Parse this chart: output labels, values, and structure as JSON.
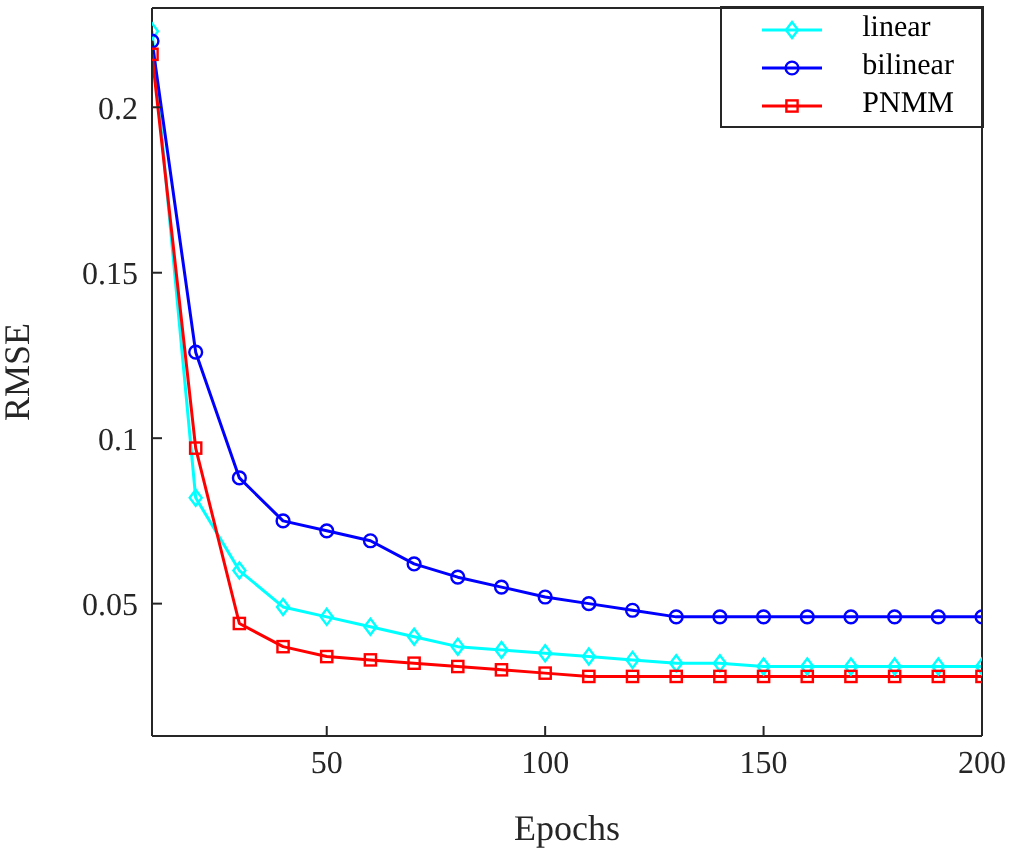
{
  "chart_data": {
    "type": "line",
    "xlabel": "Epochs",
    "ylabel": "RMSE",
    "x": [
      10,
      20,
      30,
      40,
      50,
      60,
      70,
      80,
      90,
      100,
      110,
      120,
      130,
      140,
      150,
      160,
      170,
      180,
      190,
      200
    ],
    "series": [
      {
        "name": "linear",
        "color": "#00ffff",
        "marker": "diamond",
        "values": [
          0.223,
          0.082,
          0.06,
          0.049,
          0.046,
          0.043,
          0.04,
          0.037,
          0.036,
          0.035,
          0.034,
          0.033,
          0.032,
          0.032,
          0.031,
          0.031,
          0.031,
          0.031,
          0.031,
          0.031
        ]
      },
      {
        "name": "bilinear",
        "color": "#0000ff",
        "marker": "circle",
        "values": [
          0.22,
          0.126,
          0.088,
          0.075,
          0.072,
          0.069,
          0.062,
          0.058,
          0.055,
          0.052,
          0.05,
          0.048,
          0.046,
          0.046,
          0.046,
          0.046,
          0.046,
          0.046,
          0.046,
          0.046
        ]
      },
      {
        "name": "PNMM",
        "color": "#ff0000",
        "marker": "square",
        "values": [
          0.216,
          0.097,
          0.044,
          0.037,
          0.034,
          0.033,
          0.032,
          0.031,
          0.03,
          0.029,
          0.028,
          0.028,
          0.028,
          0.028,
          0.028,
          0.028,
          0.028,
          0.028,
          0.028,
          0.028
        ]
      }
    ],
    "xlim": [
      10,
      200
    ],
    "xticks": [
      50,
      100,
      150,
      200
    ],
    "ylim": [
      0.01,
      0.23
    ],
    "yticks": [
      0.05,
      0.1,
      0.15,
      0.2
    ],
    "grid": false,
    "legend": "top right",
    "line_style": "solid"
  }
}
